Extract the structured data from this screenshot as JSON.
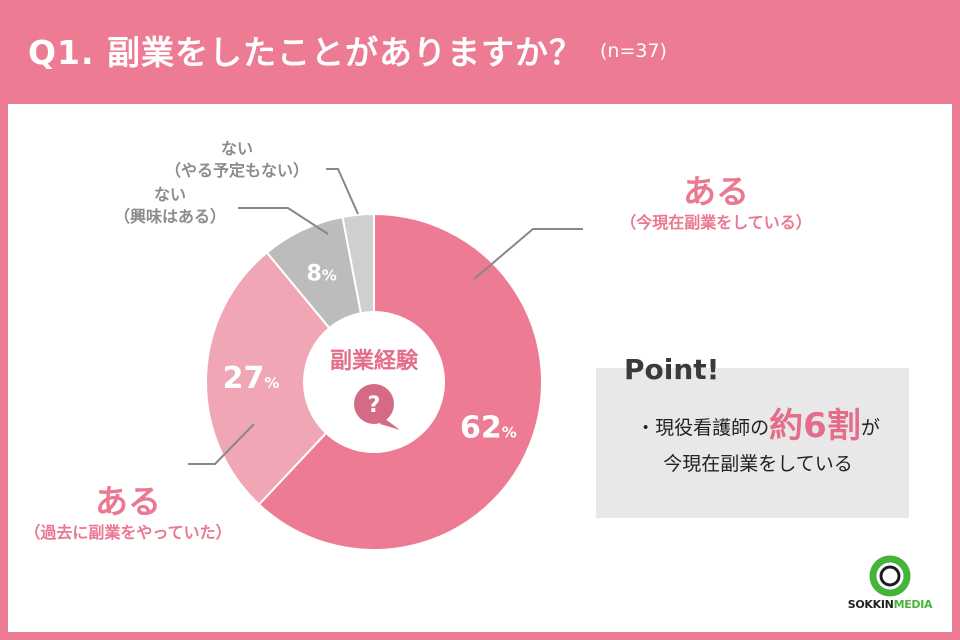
{
  "header": {
    "title": "Q1. 副業をしたことがありますか？",
    "sample_size": "(n=37)"
  },
  "chart_data": {
    "type": "pie",
    "title": "Q1. 副業をしたことがありますか？",
    "center_label": "副業経験",
    "center_icon": "question-bubble-icon",
    "slices": [
      {
        "name": "ある（今現在副業をしている）",
        "value": 62,
        "color": "#ec7b93",
        "label": "62"
      },
      {
        "name": "ある（過去に副業をやっていた）",
        "value": 27,
        "color": "#f0a6b5",
        "label": "27"
      },
      {
        "name": "ない（興味はある）",
        "value": 8,
        "color": "#bcbcbc",
        "label": "8"
      },
      {
        "name": "ない（やる予定もない）",
        "value": 3,
        "color": "#cfcfcf",
        "label": ""
      }
    ],
    "unit": "%"
  },
  "labels": {
    "current_big": "ある",
    "current_small": "（今現在副業をしている）",
    "past_big": "ある",
    "past_small": "（過去に副業をやっていた）",
    "interested_line1": "ない",
    "interested_line2": "（興味はある）",
    "none_line1": "ない",
    "none_line2": "（やる予定もない）"
  },
  "point": {
    "title": "Point!",
    "line1_prefix": "・現役看護師の",
    "highlight": "約6割",
    "line1_suffix": "が",
    "line2": "今現在副業をしている"
  },
  "logo": {
    "brand_dark": "SOKKIN",
    "brand_accent": "MEDIA",
    "accent_color": "#46b43a"
  }
}
